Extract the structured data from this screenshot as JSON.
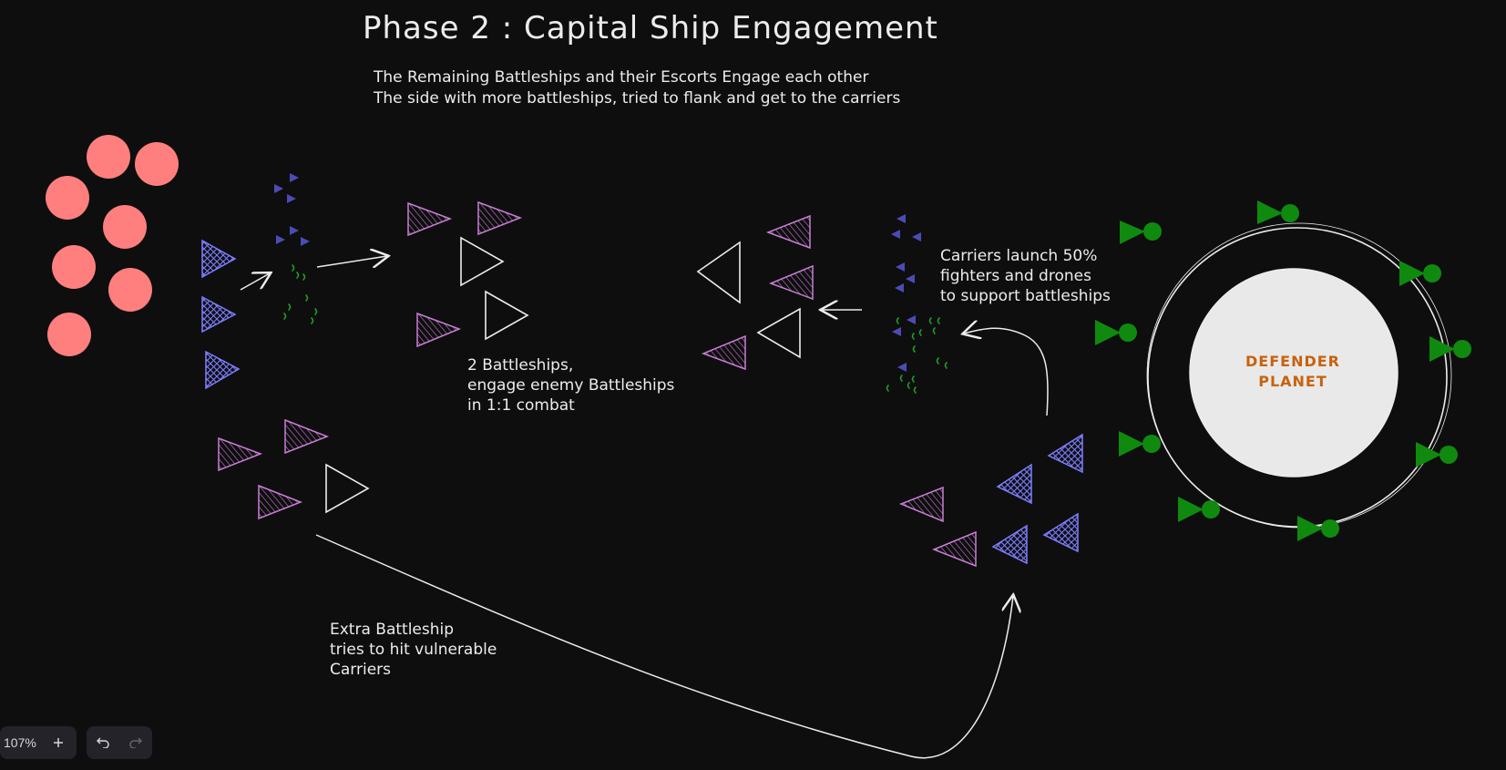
{
  "title": "Phase 2 : Capital Ship Engagement",
  "intro_lines": [
    "The Remaining Battleships and their Escorts Engage each other",
    "The side with more battleships, tried to flank and get to the carriers"
  ],
  "notes": {
    "battleships_engage": [
      "2 Battleships,",
      "engage enemy Battleships",
      "in 1:1 combat"
    ],
    "carriers_launch": [
      "Carriers launch 50%",
      "fighters and drones",
      "to support battleships"
    ],
    "extra_battleship": [
      "Extra Battleship",
      "tries to hit vulnerable",
      "Carriers"
    ]
  },
  "planet": {
    "label_lines": [
      "DEFENDER",
      "PLANET"
    ]
  },
  "toolbar": {
    "zoom_value": "107%",
    "zoom_in_icon": "plus-icon",
    "undo_icon": "undo-icon",
    "redo_icon": "redo-icon"
  },
  "colors": {
    "background": "#0e0e0e",
    "stroke": "#ececec",
    "carrier_red": "#ff7f7f",
    "escort_blue": "#7d7dff",
    "battleship_purple": "#c97fd6",
    "fighter_green": "#1f9e2a",
    "drone_navy": "#4b4bb8",
    "defense_green": "#0f8a0f",
    "planet_fill": "#e9e9e9",
    "planet_label": "#c8620e"
  }
}
